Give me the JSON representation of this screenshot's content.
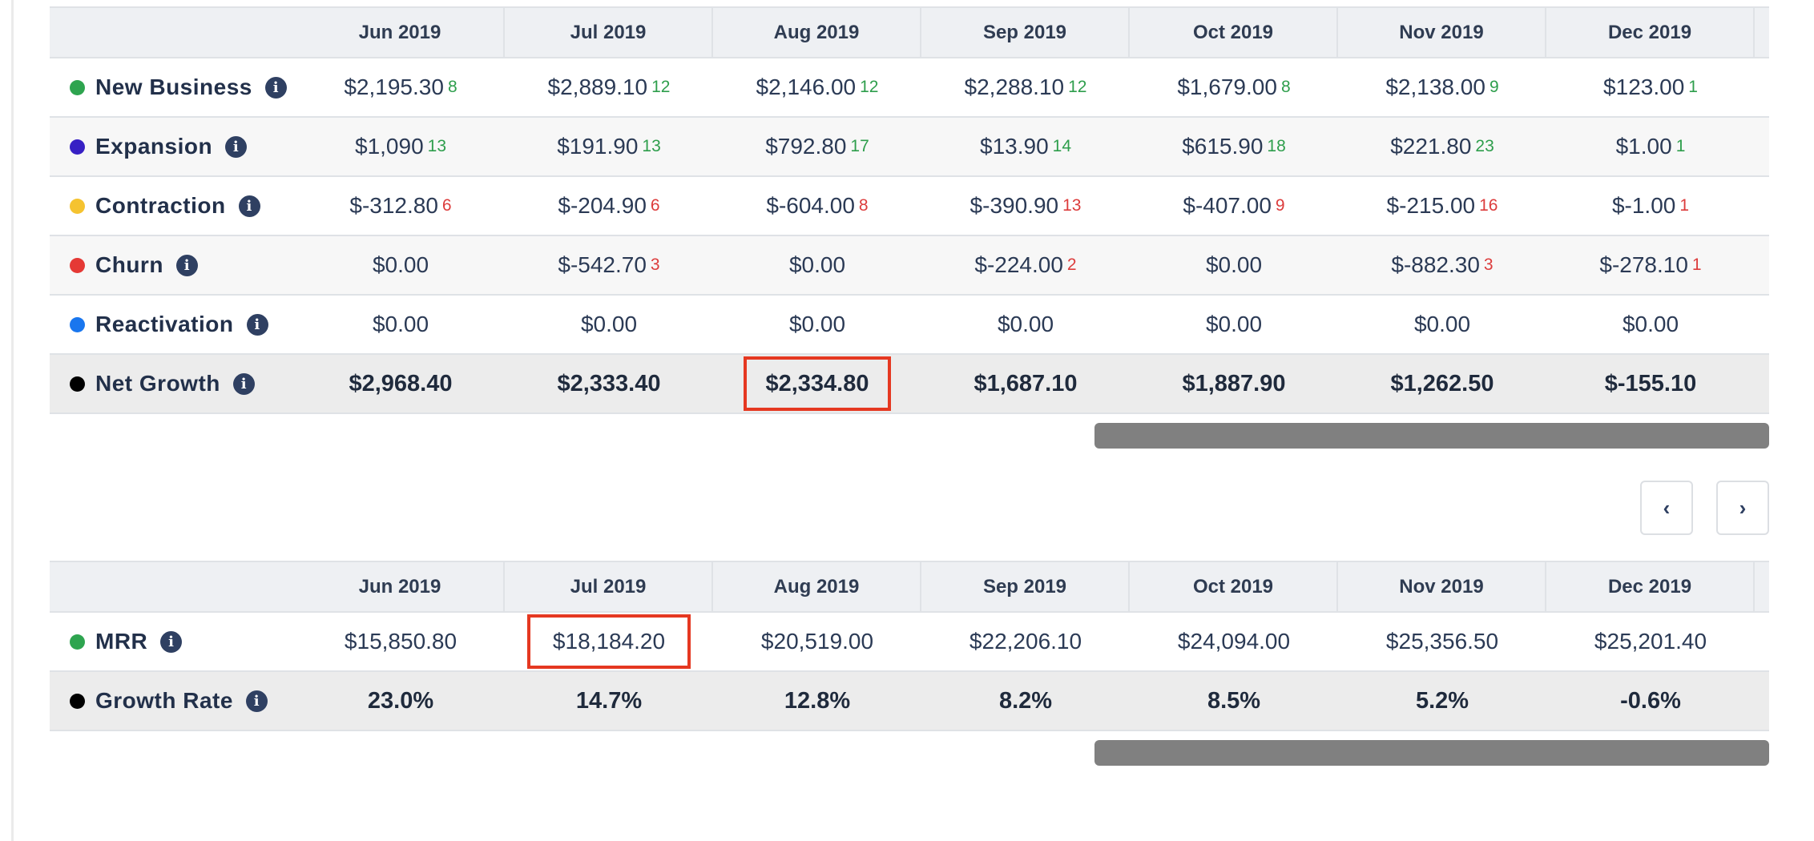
{
  "months": [
    "Jun 2019",
    "Jul 2019",
    "Aug 2019",
    "Sep 2019",
    "Oct 2019",
    "Nov 2019",
    "Dec 2019"
  ],
  "movement_table": {
    "rows": [
      {
        "label": "New Business",
        "color": "#2ea44f",
        "cells": [
          {
            "v": "$2,195.30",
            "c": "8"
          },
          {
            "v": "$2,889.10",
            "c": "12"
          },
          {
            "v": "$2,146.00",
            "c": "12"
          },
          {
            "v": "$2,288.10",
            "c": "12"
          },
          {
            "v": "$1,679.00",
            "c": "8"
          },
          {
            "v": "$2,138.00",
            "c": "9"
          },
          {
            "v": "$123.00",
            "c": "1"
          }
        ]
      },
      {
        "label": "Expansion",
        "color": "#3720c4",
        "cells": [
          {
            "v": "$1,090",
            "c": "13"
          },
          {
            "v": "$191.90",
            "c": "13"
          },
          {
            "v": "$792.80",
            "c": "17"
          },
          {
            "v": "$13.90",
            "c": "14"
          },
          {
            "v": "$615.90",
            "c": "18"
          },
          {
            "v": "$221.80",
            "c": "23"
          },
          {
            "v": "$1.00",
            "c": "1"
          }
        ]
      },
      {
        "label": "Contraction",
        "color": "#f5c330",
        "cells": [
          {
            "v": "$-312.80",
            "c": "6"
          },
          {
            "v": "$-204.90",
            "c": "6"
          },
          {
            "v": "$-604.00",
            "c": "8"
          },
          {
            "v": "$-390.90",
            "c": "13"
          },
          {
            "v": "$-407.00",
            "c": "9"
          },
          {
            "v": "$-215.00",
            "c": "16"
          },
          {
            "v": "$-1.00",
            "c": "1"
          }
        ]
      },
      {
        "label": "Churn",
        "color": "#e53935",
        "cells": [
          {
            "v": "$0.00",
            "c": ""
          },
          {
            "v": "$-542.70",
            "c": "3"
          },
          {
            "v": "$0.00",
            "c": ""
          },
          {
            "v": "$-224.00",
            "c": "2"
          },
          {
            "v": "$0.00",
            "c": ""
          },
          {
            "v": "$-882.30",
            "c": "3"
          },
          {
            "v": "$-278.10",
            "c": "1"
          }
        ]
      },
      {
        "label": "Reactivation",
        "color": "#1976ee",
        "cells": [
          {
            "v": "$0.00",
            "c": ""
          },
          {
            "v": "$0.00",
            "c": ""
          },
          {
            "v": "$0.00",
            "c": ""
          },
          {
            "v": "$0.00",
            "c": ""
          },
          {
            "v": "$0.00",
            "c": ""
          },
          {
            "v": "$0.00",
            "c": ""
          },
          {
            "v": "$0.00",
            "c": ""
          }
        ]
      }
    ],
    "total": {
      "label": "Net Growth",
      "color": "#000000",
      "cells": [
        "$2,968.40",
        "$2,333.40",
        "$2,334.80",
        "$1,687.10",
        "$1,887.90",
        "$1,262.50",
        "$-155.10"
      ]
    }
  },
  "mrr_table": {
    "rows": [
      {
        "label": "MRR",
        "color": "#2ea44f",
        "cells": [
          "$15,850.80",
          "$18,184.20",
          "$20,519.00",
          "$22,206.10",
          "$24,094.00",
          "$25,356.50",
          "$25,201.40"
        ]
      }
    ],
    "total": {
      "label": "Growth Rate",
      "color": "#000000",
      "cells": [
        "23.0%",
        "14.7%",
        "12.8%",
        "8.2%",
        "8.5%",
        "5.2%",
        "-0.6%"
      ]
    }
  },
  "nav": {
    "prev_label": "‹",
    "next_label": "›",
    "prev_icon": "chevron-left-icon",
    "next_icon": "chevron-right-icon"
  },
  "info_glyph": "i",
  "colors": {
    "highlight": "#e53821",
    "positive": "#2e9e4c",
    "negative": "#dc3c3c"
  }
}
